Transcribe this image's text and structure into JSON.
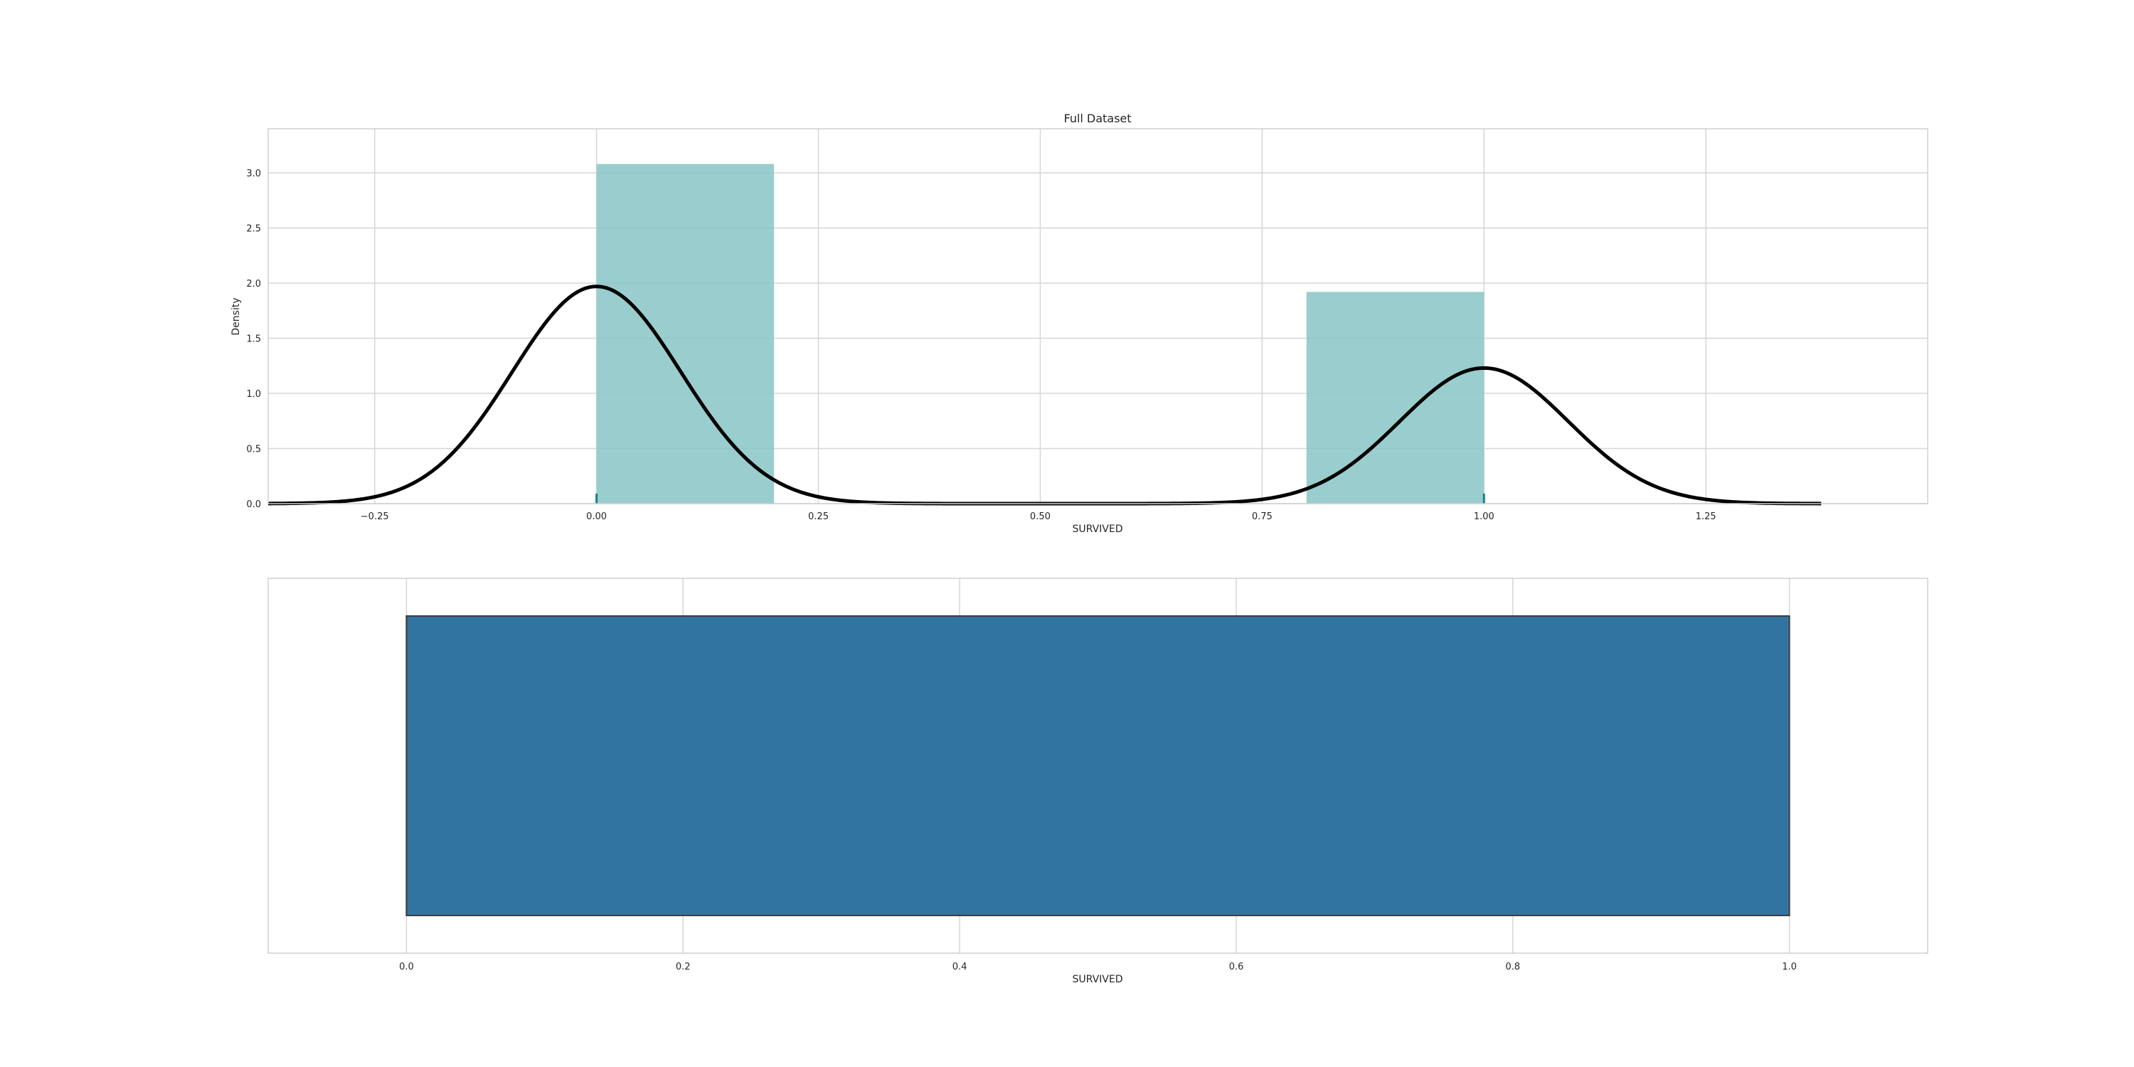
{
  "chart_data": [
    {
      "type": "bar",
      "subtype": "histogram-with-kde-and-rug",
      "title": "Full Dataset",
      "xlabel": "SURVIVED",
      "ylabel": "Density",
      "xlim": [
        -0.37,
        1.5
      ],
      "ylim": [
        0,
        3.4
      ],
      "xticks": [
        -0.25,
        0.0,
        0.25,
        0.5,
        0.75,
        1.0,
        1.25
      ],
      "xtick_labels": [
        "−0.25",
        "0.00",
        "0.25",
        "0.50",
        "0.75",
        "1.00",
        "1.25"
      ],
      "yticks": [
        0.0,
        0.5,
        1.0,
        1.5,
        2.0,
        2.5,
        3.0
      ],
      "ytick_labels": [
        "0.0",
        "0.5",
        "1.0",
        "1.5",
        "2.0",
        "2.5",
        "3.0"
      ],
      "grid": true,
      "bars": [
        {
          "x0": 0.0,
          "x1": 0.2,
          "value": 3.08
        },
        {
          "x0": 0.8,
          "x1": 1.0,
          "value": 1.92
        }
      ],
      "bar_color": "#8cc6c6",
      "kde": {
        "color": "#000000",
        "components": [
          {
            "center": 0.0,
            "peak": 1.97,
            "sigma": 0.095
          },
          {
            "center": 1.0,
            "peak": 1.23,
            "sigma": 0.095
          }
        ],
        "x_range": [
          -0.37,
          1.38
        ]
      },
      "rug": {
        "values": [
          0.0,
          1.0
        ],
        "color": "#1a7f7f"
      }
    },
    {
      "type": "boxplot",
      "xlabel": "SURVIVED",
      "xlim": [
        -0.1,
        1.1
      ],
      "xticks": [
        0.0,
        0.2,
        0.4,
        0.6,
        0.8,
        1.0
      ],
      "xtick_labels": [
        "0.0",
        "0.2",
        "0.4",
        "0.6",
        "0.8",
        "1.0"
      ],
      "grid": true,
      "box": {
        "q1": 0.0,
        "median": 0.0,
        "q3": 1.0,
        "whisker_low": 0.0,
        "whisker_high": 1.0
      },
      "box_color": "#3274a1"
    }
  ]
}
